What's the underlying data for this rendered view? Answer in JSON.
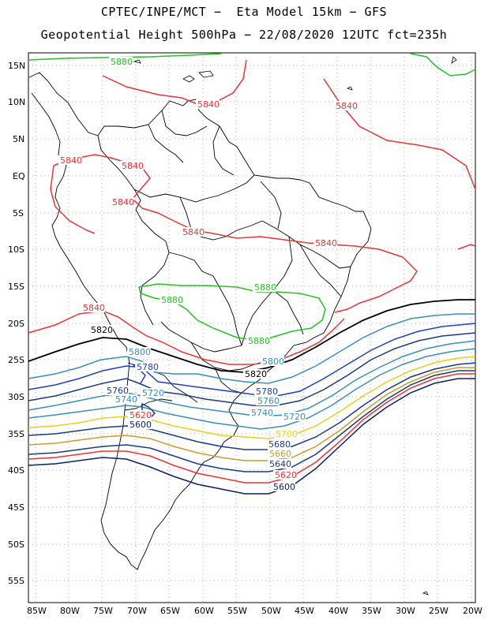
{
  "title_line1": "CPTEC/INPE/MCT −  Eta Model 15km − GFS",
  "title_line2": "Geopotential Height 500hPa − 22/08/2020 12UTC fct=235h",
  "lat_labels": [
    "15N",
    "10N",
    "5N",
    "EQ",
    "5S",
    "10S",
    "15S",
    "20S",
    "25S",
    "30S",
    "35S",
    "40S",
    "45S",
    "50S",
    "55S"
  ],
  "lon_labels": [
    "85W",
    "80W",
    "75W",
    "70W",
    "65W",
    "60W",
    "55W",
    "50W",
    "45W",
    "40W",
    "35W",
    "30W",
    "25W",
    "20W"
  ],
  "contour_labels": [
    {
      "text": "5880",
      "color": "#22c422"
    },
    {
      "text": "5840",
      "color": "#ee3333"
    },
    {
      "text": "5840",
      "color": "#ee3333"
    },
    {
      "text": "5840",
      "color": "#ee3333"
    },
    {
      "text": "5840",
      "color": "#ee3333"
    },
    {
      "text": "5840",
      "color": "#ee3333"
    },
    {
      "text": "5840",
      "color": "#ee3333"
    },
    {
      "text": "5840",
      "color": "#ee3333"
    },
    {
      "text": "5880",
      "color": "#22c422"
    },
    {
      "text": "5880",
      "color": "#22c422"
    },
    {
      "text": "5880",
      "color": "#22c422"
    },
    {
      "text": "5840",
      "color": "#ee3333"
    },
    {
      "text": "5820",
      "color": "#000000"
    },
    {
      "text": "5820",
      "color": "#000000"
    },
    {
      "text": "5800",
      "color": "#3a8fc0"
    },
    {
      "text": "5800",
      "color": "#3a8fc0"
    },
    {
      "text": "5780",
      "color": "#1f3fd0"
    },
    {
      "text": "5780",
      "color": "#1f3fd0"
    },
    {
      "text": "5760",
      "color": "#1a3a8a"
    },
    {
      "text": "5760",
      "color": "#3a8fc0"
    },
    {
      "text": "5740",
      "color": "#3a8fc0"
    },
    {
      "text": "5740",
      "color": "#3a8fc0"
    },
    {
      "text": "5720",
      "color": "#3a8fc0"
    },
    {
      "text": "5720",
      "color": "#3a8fc0"
    },
    {
      "text": "5700",
      "color": "#e6d21a"
    },
    {
      "text": "5680",
      "color": "#1a3a8a"
    },
    {
      "text": "5660",
      "color": "#d19a2a"
    },
    {
      "text": "5640",
      "color": "#1a3a8a"
    },
    {
      "text": "5620",
      "color": "#ee3333"
    },
    {
      "text": "5600",
      "color": "#0a1f6e"
    },
    {
      "text": "5620",
      "color": "#ee3333"
    },
    {
      "text": "5600",
      "color": "#0a1f6e"
    }
  ]
}
